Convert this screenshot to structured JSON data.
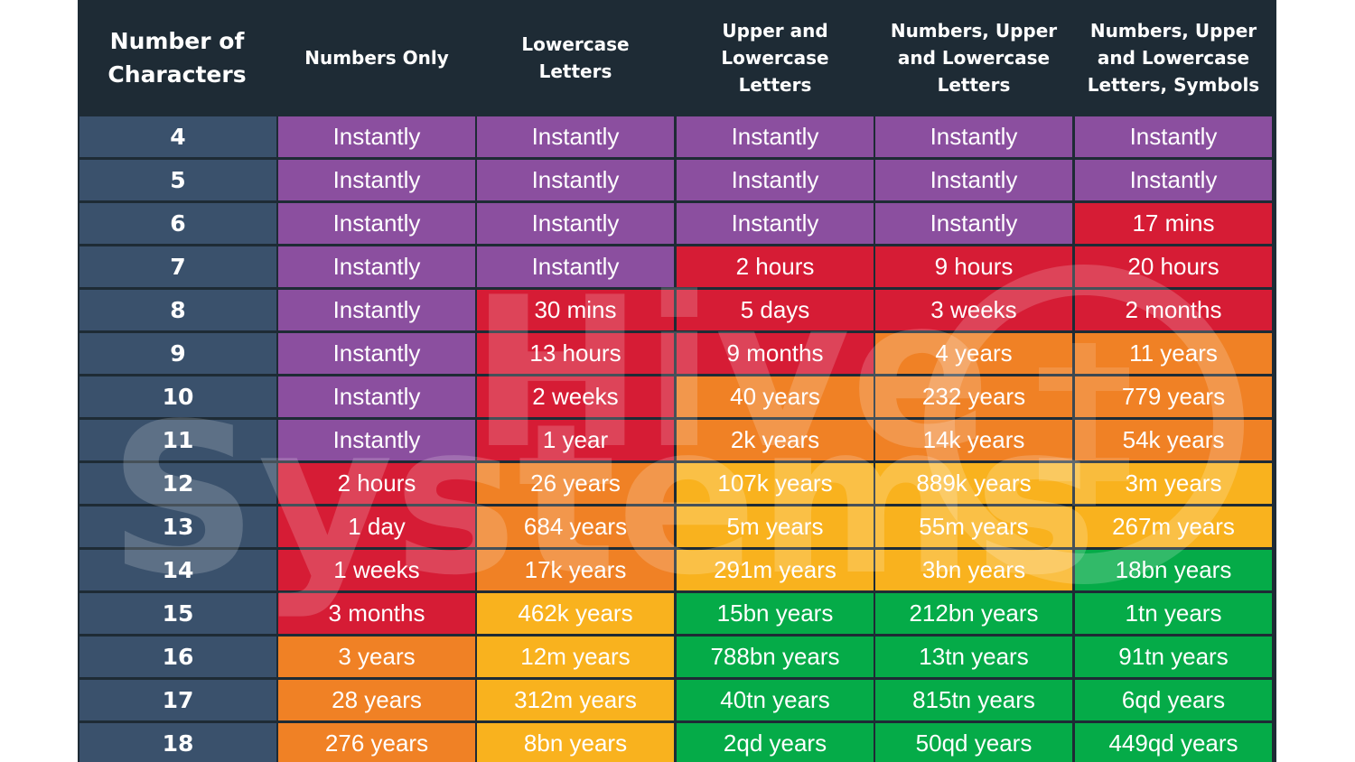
{
  "header": {
    "first": "Number of\nCharacters",
    "columns": [
      "Numbers Only",
      "Lowercase\nLetters",
      "Upper and\nLowercase\nLetters",
      "Numbers, Upper\nand Lowercase\nLetters",
      "Numbers, Upper\nand Lowercase\nLetters, Symbols"
    ]
  },
  "colors": {
    "frame": "#1e2b35",
    "row_label": "#3a516c",
    "purple": "#8b4f9f",
    "red": "#d61c35",
    "orange": "#f08125",
    "yellow": "#f9b21e",
    "green": "#05ab48"
  },
  "watermark": {
    "line1": "Hive",
    "line2": "Systems"
  },
  "rows": [
    {
      "n": "4",
      "cells": [
        [
          "Instantly",
          "purple"
        ],
        [
          "Instantly",
          "purple"
        ],
        [
          "Instantly",
          "purple"
        ],
        [
          "Instantly",
          "purple"
        ],
        [
          "Instantly",
          "purple"
        ]
      ]
    },
    {
      "n": "5",
      "cells": [
        [
          "Instantly",
          "purple"
        ],
        [
          "Instantly",
          "purple"
        ],
        [
          "Instantly",
          "purple"
        ],
        [
          "Instantly",
          "purple"
        ],
        [
          "Instantly",
          "purple"
        ]
      ]
    },
    {
      "n": "6",
      "cells": [
        [
          "Instantly",
          "purple"
        ],
        [
          "Instantly",
          "purple"
        ],
        [
          "Instantly",
          "purple"
        ],
        [
          "Instantly",
          "purple"
        ],
        [
          "17 mins",
          "red"
        ]
      ]
    },
    {
      "n": "7",
      "cells": [
        [
          "Instantly",
          "purple"
        ],
        [
          "Instantly",
          "purple"
        ],
        [
          "2 hours",
          "red"
        ],
        [
          "9 hours",
          "red"
        ],
        [
          "20 hours",
          "red"
        ]
      ]
    },
    {
      "n": "8",
      "cells": [
        [
          "Instantly",
          "purple"
        ],
        [
          "30 mins",
          "red"
        ],
        [
          "5 days",
          "red"
        ],
        [
          "3 weeks",
          "red"
        ],
        [
          "2 months",
          "red"
        ]
      ]
    },
    {
      "n": "9",
      "cells": [
        [
          "Instantly",
          "purple"
        ],
        [
          "13 hours",
          "red"
        ],
        [
          "9 months",
          "red"
        ],
        [
          "4 years",
          "orange"
        ],
        [
          "11 years",
          "orange"
        ]
      ]
    },
    {
      "n": "10",
      "cells": [
        [
          "Instantly",
          "purple"
        ],
        [
          "2 weeks",
          "red"
        ],
        [
          "40 years",
          "orange"
        ],
        [
          "232 years",
          "orange"
        ],
        [
          "779 years",
          "orange"
        ]
      ]
    },
    {
      "n": "11",
      "cells": [
        [
          "Instantly",
          "purple"
        ],
        [
          "1 year",
          "red"
        ],
        [
          "2k years",
          "orange"
        ],
        [
          "14k years",
          "orange"
        ],
        [
          "54k years",
          "orange"
        ]
      ]
    },
    {
      "n": "12",
      "cells": [
        [
          "2 hours",
          "red"
        ],
        [
          "26 years",
          "orange"
        ],
        [
          "107k years",
          "yellow"
        ],
        [
          "889k years",
          "yellow"
        ],
        [
          "3m years",
          "yellow"
        ]
      ]
    },
    {
      "n": "13",
      "cells": [
        [
          "1 day",
          "red"
        ],
        [
          "684 years",
          "orange"
        ],
        [
          "5m years",
          "yellow"
        ],
        [
          "55m years",
          "yellow"
        ],
        [
          "267m years",
          "yellow"
        ]
      ]
    },
    {
      "n": "14",
      "cells": [
        [
          "1 weeks",
          "red"
        ],
        [
          "17k years",
          "orange"
        ],
        [
          "291m years",
          "yellow"
        ],
        [
          "3bn years",
          "yellow"
        ],
        [
          "18bn years",
          "green"
        ]
      ]
    },
    {
      "n": "15",
      "cells": [
        [
          "3 months",
          "red"
        ],
        [
          "462k years",
          "yellow"
        ],
        [
          "15bn years",
          "green"
        ],
        [
          "212bn years",
          "green"
        ],
        [
          "1tn years",
          "green"
        ]
      ]
    },
    {
      "n": "16",
      "cells": [
        [
          "3 years",
          "orange"
        ],
        [
          "12m years",
          "yellow"
        ],
        [
          "788bn years",
          "green"
        ],
        [
          "13tn years",
          "green"
        ],
        [
          "91tn years",
          "green"
        ]
      ]
    },
    {
      "n": "17",
      "cells": [
        [
          "28 years",
          "orange"
        ],
        [
          "312m years",
          "yellow"
        ],
        [
          "40tn years",
          "green"
        ],
        [
          "815tn years",
          "green"
        ],
        [
          "6qd years",
          "green"
        ]
      ]
    },
    {
      "n": "18",
      "cells": [
        [
          "276 years",
          "orange"
        ],
        [
          "8bn years",
          "yellow"
        ],
        [
          "2qd years",
          "green"
        ],
        [
          "50qd years",
          "green"
        ],
        [
          "449qd years",
          "green"
        ]
      ]
    }
  ]
}
